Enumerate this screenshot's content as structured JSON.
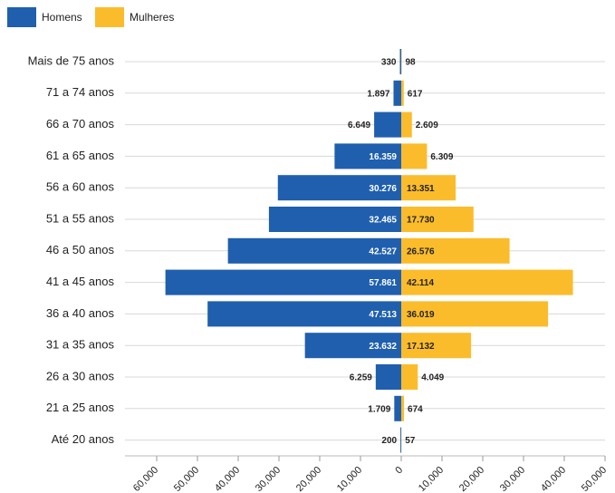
{
  "chart_data": {
    "type": "pyramid",
    "categories": [
      "Mais de 75 anos",
      "71 a 74 anos",
      "66 a 70 anos",
      "61 a 65 anos",
      "56 a 60 anos",
      "51 a 55 anos",
      "46 a 50 anos",
      "41 a 45 anos",
      "36 a 40 anos",
      "31 a 35 anos",
      "26 a 30 anos",
      "21 a 25 anos",
      "Até 20 anos"
    ],
    "series": [
      {
        "name": "Homens",
        "color": "#1f5fae",
        "values": [
          -330,
          -1897,
          -6649,
          -16359,
          -30276,
          -32465,
          -42527,
          -57861,
          -47513,
          -23632,
          -6259,
          -1709,
          -200
        ],
        "value_labels": [
          "330",
          "1.897",
          "6.649",
          "16.359",
          "30.276",
          "32.465",
          "42.527",
          "57.861",
          "47.513",
          "23.632",
          "6.259",
          "1.709",
          "200"
        ]
      },
      {
        "name": "Mulheres",
        "color": "#fbbc2c",
        "values": [
          98,
          617,
          2609,
          6309,
          13351,
          17730,
          26576,
          42114,
          36019,
          17132,
          4049,
          674,
          57
        ],
        "value_labels": [
          "98",
          "617",
          "2.609",
          "6.309",
          "13.351",
          "17.730",
          "26.576",
          "42.114",
          "36.019",
          "17.132",
          "4.049",
          "674",
          "57"
        ]
      }
    ],
    "xlim": [
      -60000,
      50000
    ],
    "xticks": [
      {
        "value": -60000,
        "label": "60,000"
      },
      {
        "value": -50000,
        "label": "50,000"
      },
      {
        "value": -40000,
        "label": "40,000"
      },
      {
        "value": -30000,
        "label": "30,000"
      },
      {
        "value": -20000,
        "label": "20,000"
      },
      {
        "value": -10000,
        "label": "10,000"
      },
      0,
      {
        "value": 10000,
        "label": "10,000"
      },
      {
        "value": 20000,
        "label": "20,000"
      },
      {
        "value": 30000,
        "label": "30,000"
      },
      {
        "value": 40000,
        "label": "40,000"
      },
      {
        "value": 50000,
        "label": "50,000"
      }
    ],
    "legend": "top-left"
  }
}
